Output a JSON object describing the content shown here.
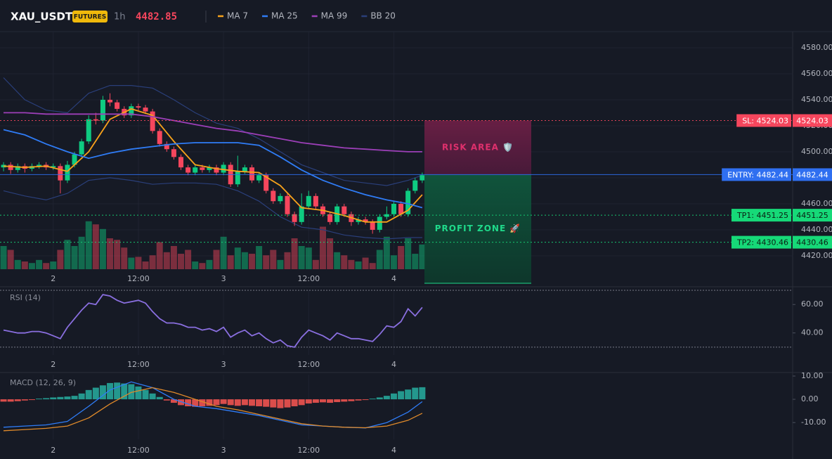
{
  "header": {
    "symbol": "XAU_USDT",
    "badge": "FUTURES",
    "interval": "1h",
    "price": "4482.85"
  },
  "chart_data": [
    {
      "type": "candlestick",
      "grid": true,
      "colors": {
        "up": "#0ecb81",
        "down": "#f6465d"
      },
      "x": [
        0,
        1,
        2,
        3,
        4,
        5,
        6,
        7,
        8,
        9,
        10,
        11,
        12,
        13,
        14,
        15,
        16,
        17,
        18,
        19,
        20,
        21,
        22,
        23,
        24,
        25,
        26,
        27,
        28,
        29,
        30,
        31,
        32,
        33,
        34,
        35,
        36,
        37,
        38,
        39,
        40,
        41,
        42,
        43,
        44,
        45,
        46,
        47,
        48,
        49,
        50,
        51,
        52,
        53,
        54,
        55,
        56,
        57,
        58,
        59
      ],
      "open": [
        4488,
        4490,
        4486,
        4489,
        4487,
        4489,
        4490,
        4488,
        4489,
        4478,
        4490,
        4498,
        4508,
        4525,
        4524,
        4540,
        4538,
        4533,
        4528,
        4535,
        4534,
        4531,
        4516,
        4506,
        4502,
        4496,
        4488,
        4484,
        4488,
        4486,
        4488,
        4484,
        4490,
        4475,
        4485,
        4488,
        4478,
        4482,
        4470,
        4462,
        4466,
        4452,
        4446,
        4458,
        4466,
        4458,
        4452,
        4446,
        4458,
        4452,
        4446,
        4448,
        4446,
        4440,
        4450,
        4452,
        4460,
        4452,
        4470,
        4478
      ],
      "high": [
        4492,
        4492,
        4491,
        4491,
        4491,
        4492,
        4492,
        4491,
        4491,
        4493,
        4500,
        4510,
        4528,
        4530,
        4543,
        4545,
        4540,
        4535,
        4537,
        4537,
        4536,
        4533,
        4518,
        4508,
        4504,
        4498,
        4490,
        4490,
        4490,
        4490,
        4490,
        4492,
        4492,
        4497,
        4490,
        4490,
        4484,
        4484,
        4472,
        4468,
        4468,
        4454,
        4468,
        4470,
        4468,
        4460,
        4454,
        4460,
        4460,
        4454,
        4450,
        4450,
        4448,
        4452,
        4458,
        4462,
        4462,
        4472,
        4480,
        4484
      ],
      "low": [
        4485,
        4483,
        4484,
        4484,
        4485,
        4487,
        4486,
        4486,
        4468,
        4476,
        4488,
        4496,
        4506,
        4521,
        4522,
        4535,
        4531,
        4526,
        4526,
        4532,
        4529,
        4514,
        4504,
        4500,
        4494,
        4486,
        4482,
        4482,
        4484,
        4484,
        4482,
        4482,
        4473,
        4473,
        4483,
        4476,
        4476,
        4468,
        4460,
        4460,
        4450,
        4443,
        4444,
        4456,
        4456,
        4450,
        4444,
        4444,
        4450,
        4443,
        4444,
        4444,
        4437,
        4438,
        4448,
        4450,
        4450,
        4450,
        4468,
        4476
      ],
      "close": [
        4490,
        4486,
        4489,
        4487,
        4489,
        4490,
        4488,
        4489,
        4478,
        4490,
        4498,
        4508,
        4525,
        4524,
        4540,
        4538,
        4533,
        4528,
        4535,
        4534,
        4531,
        4516,
        4506,
        4502,
        4496,
        4488,
        4484,
        4488,
        4486,
        4488,
        4484,
        4490,
        4475,
        4485,
        4488,
        4478,
        4482,
        4470,
        4462,
        4466,
        4452,
        4446,
        4458,
        4466,
        4458,
        4452,
        4446,
        4458,
        4452,
        4446,
        4448,
        4446,
        4440,
        4450,
        4452,
        4460,
        4452,
        4470,
        4478,
        4482
      ],
      "volume": {
        "ylim": [
          0,
          100
        ],
        "values": [
          30,
          25,
          12,
          10,
          8,
          12,
          8,
          10,
          25,
          38,
          30,
          42,
          62,
          58,
          52,
          40,
          38,
          28,
          15,
          16,
          10,
          18,
          35,
          22,
          30,
          20,
          25,
          10,
          8,
          12,
          25,
          42,
          18,
          28,
          22,
          20,
          30,
          18,
          25,
          12,
          22,
          40,
          30,
          28,
          12,
          55,
          40,
          22,
          18,
          12,
          10,
          15,
          8,
          25,
          42,
          18,
          30,
          40,
          20,
          32
        ]
      },
      "series": [
        {
          "name": "MA 7",
          "color": "#f7a21b",
          "x": [
            0,
            3,
            6,
            9,
            12,
            15,
            18,
            21,
            24,
            27,
            30,
            33,
            36,
            39,
            42,
            45,
            48,
            51,
            54,
            57,
            59
          ],
          "values": [
            4489,
            4488,
            4489,
            4485,
            4500,
            4525,
            4533,
            4528,
            4508,
            4490,
            4487,
            4485,
            4484,
            4474,
            4457,
            4455,
            4451,
            4446,
            4446,
            4455,
            4467
          ]
        },
        {
          "name": "MA 25",
          "color": "#2f7cf6",
          "x": [
            0,
            3,
            6,
            9,
            12,
            15,
            18,
            21,
            24,
            27,
            30,
            33,
            36,
            39,
            42,
            45,
            48,
            51,
            54,
            57,
            59
          ],
          "values": [
            4517,
            4513,
            4506,
            4500,
            4495,
            4499,
            4502,
            4504,
            4506,
            4507,
            4507,
            4507,
            4505,
            4496,
            4486,
            4478,
            4472,
            4467,
            4463,
            4460,
            4457
          ]
        },
        {
          "name": "MA 99",
          "color": "#9c3fb8",
          "x": [
            0,
            3,
            6,
            9,
            12,
            15,
            18,
            21,
            24,
            27,
            30,
            33,
            36,
            39,
            42,
            45,
            48,
            51,
            54,
            57,
            59
          ],
          "values": [
            4530,
            4530,
            4529,
            4529,
            4529,
            4529,
            4529,
            4527,
            4524,
            4521,
            4518,
            4516,
            4513,
            4510,
            4507,
            4505,
            4503,
            4502,
            4501,
            4500,
            4500
          ]
        },
        {
          "name": "BB 20",
          "color": "#2a3f7a",
          "x": [
            0,
            3,
            6,
            9,
            12,
            15,
            18,
            21,
            24,
            27,
            30,
            33,
            36,
            39,
            42,
            45,
            48,
            51,
            54,
            57,
            59
          ],
          "upper": [
            4557,
            4540,
            4532,
            4530,
            4545,
            4551,
            4551,
            4549,
            4540,
            4530,
            4522,
            4518,
            4510,
            4500,
            4490,
            4484,
            4478,
            4476,
            4474,
            4478,
            4482
          ],
          "lower": [
            4470,
            4466,
            4463,
            4468,
            4478,
            4480,
            4478,
            4475,
            4476,
            4476,
            4475,
            4470,
            4462,
            4450,
            4442,
            4440,
            4436,
            4434,
            4433,
            4434,
            4434
          ]
        }
      ],
      "levels": [
        {
          "value": 4524.03,
          "label": "SL: 4524.03",
          "color": "#f6465d",
          "text_color": "#ffffff"
        },
        {
          "value": 4482.44,
          "label": "ENTRY: 4482.44",
          "color": "#2f6ff0",
          "text_color": "#ffffff"
        },
        {
          "value": 4451.25,
          "label": "TP1: 4451.25",
          "color": "#16d978",
          "text_color": "#0b1e12"
        },
        {
          "value": 4430.46,
          "label": "TP2: 4430.46",
          "color": "#16d978",
          "text_color": "#0b1e12"
        }
      ],
      "zones": [
        {
          "text": "RISK AREA 🛡️",
          "color": "#e0306d",
          "fill": "#6b1f45"
        },
        {
          "text": "PROFIT ZONE 🚀",
          "color": "#1fd98a",
          "fill": "#0f5a3e"
        }
      ],
      "xlim": [
        -0.5,
        111.2
      ],
      "xticks": [
        {
          "value": 7,
          "label": "2"
        },
        {
          "value": 19,
          "label": "12:00"
        },
        {
          "value": 31,
          "label": "3"
        },
        {
          "value": 43,
          "label": "12:00"
        },
        {
          "value": 55,
          "label": "4"
        }
      ],
      "ylim": [
        4409.7,
        4592.4
      ],
      "yticks": [
        {
          "value": 4420,
          "label": "4420.00"
        },
        {
          "value": 4440,
          "label": "4440.00"
        },
        {
          "value": 4460,
          "label": "4460.00"
        },
        {
          "value": 4480,
          "label": "4480.00"
        },
        {
          "value": 4500,
          "label": "4500.00"
        },
        {
          "value": 4520,
          "label": "4520.00"
        },
        {
          "value": 4540,
          "label": "4540.00"
        },
        {
          "value": 4560,
          "label": "4560.00"
        },
        {
          "value": 4580,
          "label": "4580.00"
        }
      ]
    },
    {
      "type": "line",
      "title": "RSI (14)",
      "grid": false,
      "color": "#8a6fe0",
      "x": [
        0,
        1,
        2,
        3,
        4,
        5,
        6,
        7,
        8,
        9,
        10,
        11,
        12,
        13,
        14,
        15,
        16,
        17,
        18,
        19,
        20,
        21,
        22,
        23,
        24,
        25,
        26,
        27,
        28,
        29,
        30,
        31,
        32,
        33,
        34,
        35,
        36,
        37,
        38,
        39,
        40,
        41,
        42,
        43,
        44,
        45,
        46,
        47,
        48,
        49,
        50,
        51,
        52,
        53,
        54,
        55,
        56,
        57,
        58,
        59
      ],
      "values": [
        42,
        41,
        40,
        40,
        41,
        41,
        40,
        38,
        36,
        44,
        50,
        56,
        61,
        60,
        67,
        66,
        63,
        61,
        62,
        63,
        61,
        55,
        50,
        47,
        47,
        46,
        44,
        44,
        42,
        43,
        41,
        44,
        37,
        40,
        42,
        38,
        40,
        36,
        33,
        35,
        31,
        30,
        37,
        42,
        40,
        38,
        35,
        40,
        38,
        36,
        36,
        35,
        34,
        39,
        45,
        44,
        48,
        57,
        52,
        58
      ],
      "bands": [
        30,
        70
      ],
      "xlim": [
        -0.5,
        111.2
      ],
      "xticks": [
        {
          "value": 7,
          "label": "2"
        },
        {
          "value": 19,
          "label": "12:00"
        },
        {
          "value": 31,
          "label": "3"
        },
        {
          "value": 43,
          "label": "12:00"
        },
        {
          "value": 55,
          "label": "4"
        }
      ],
      "ylim": [
        24.5,
        70.5
      ],
      "yticks": [
        {
          "value": 40,
          "label": "40.00"
        },
        {
          "value": 60,
          "label": "60.00"
        }
      ]
    },
    {
      "type": "macd",
      "title": "MACD (12, 26, 9)",
      "grid": false,
      "colors": {
        "up": "#26a69a",
        "down": "#ef5350"
      },
      "x": [
        0,
        1,
        2,
        3,
        4,
        5,
        6,
        7,
        8,
        9,
        10,
        11,
        12,
        13,
        14,
        15,
        16,
        17,
        18,
        19,
        20,
        21,
        22,
        23,
        24,
        25,
        26,
        27,
        28,
        29,
        30,
        31,
        32,
        33,
        34,
        35,
        36,
        37,
        38,
        39,
        40,
        41,
        42,
        43,
        44,
        45,
        46,
        47,
        48,
        49,
        50,
        51,
        52,
        53,
        54,
        55,
        56,
        57,
        58,
        59
      ],
      "histogram": [
        -1,
        -1,
        -0.8,
        -0.5,
        -0.3,
        0.3,
        0.5,
        0.8,
        1,
        1.2,
        1.5,
        2.5,
        4,
        5,
        6,
        7,
        7.2,
        6.8,
        6.5,
        5.5,
        4,
        2.5,
        1,
        -0.5,
        -1.5,
        -2.5,
        -3,
        -3.2,
        -3,
        -2.8,
        -2.5,
        -2,
        -2.5,
        -2.8,
        -2.5,
        -2.8,
        -3,
        -3.2,
        -3.5,
        -3.8,
        -3.5,
        -3,
        -2.5,
        -1.8,
        -1.5,
        -1.3,
        -1.5,
        -1.2,
        -1,
        -0.8,
        -0.5,
        -0.3,
        0.3,
        0.8,
        1.5,
        2.5,
        3.5,
        4.2,
        5,
        5.2
      ],
      "series": [
        {
          "color": "#2f7cf6",
          "x": [
            0,
            3,
            6,
            9,
            12,
            15,
            18,
            21,
            24,
            27,
            30,
            33,
            36,
            39,
            42,
            45,
            48,
            51,
            54,
            57,
            59
          ],
          "values": [
            -12,
            -11.5,
            -11,
            -9.5,
            -3,
            4,
            7.5,
            5,
            0,
            -3,
            -4,
            -5.5,
            -7,
            -9,
            -11,
            -11.5,
            -12,
            -12.3,
            -10,
            -5.5,
            -1
          ]
        },
        {
          "color": "#e08a2a",
          "x": [
            0,
            3,
            6,
            9,
            12,
            15,
            18,
            21,
            24,
            27,
            30,
            33,
            36,
            39,
            42,
            45,
            48,
            51,
            54,
            57,
            59
          ],
          "values": [
            -13.5,
            -13,
            -12.5,
            -11.5,
            -8,
            -2,
            3,
            5,
            3,
            0,
            -3,
            -4.5,
            -6.5,
            -8.5,
            -10.5,
            -11.5,
            -12,
            -12.2,
            -11.5,
            -9,
            -6
          ]
        }
      ],
      "xlim": [
        -0.5,
        111.2
      ],
      "xticks": [
        {
          "value": 7,
          "label": "2"
        },
        {
          "value": 19,
          "label": "12:00"
        },
        {
          "value": 31,
          "label": "3"
        },
        {
          "value": 43,
          "label": "12:00"
        },
        {
          "value": 55,
          "label": "4"
        }
      ],
      "ylim": [
        -17.2,
        10.6
      ],
      "yticks": [
        {
          "value": -10,
          "label": "-10.00"
        },
        {
          "value": 0,
          "label": "0.00"
        },
        {
          "value": 10,
          "label": "10.00"
        }
      ]
    }
  ]
}
